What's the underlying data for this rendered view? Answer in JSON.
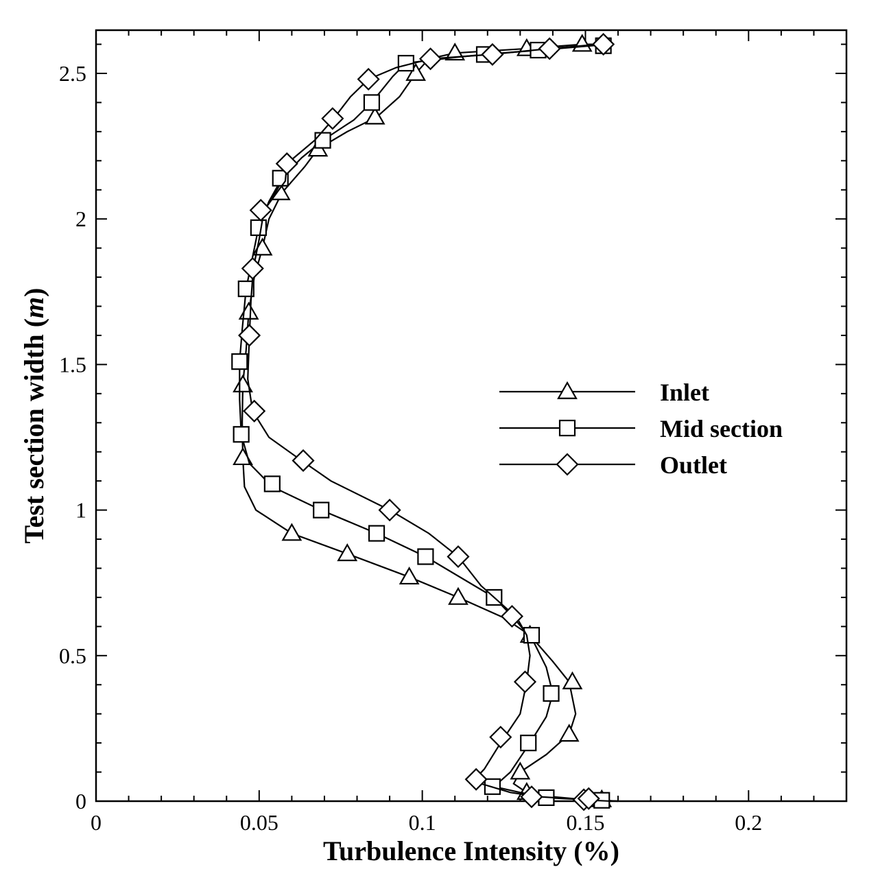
{
  "chart_data": {
    "type": "line",
    "xlabel": "Turbulence Intensity (%)",
    "ylabel_text": "Test section width (",
    "ylabel_unit": "m",
    "ylabel_close": ")",
    "xlim": [
      0,
      0.23
    ],
    "ylim": [
      0,
      2.65
    ],
    "x_ticks": [
      0,
      0.05,
      0.1,
      0.15,
      0.2
    ],
    "x_tick_labels": [
      "0",
      "0.05",
      "0.1",
      "0.15",
      "0.2"
    ],
    "y_ticks": [
      0,
      0.5,
      1,
      1.5,
      2,
      2.5
    ],
    "y_tick_labels": [
      "0",
      "0.5",
      "1",
      "1.5",
      "2",
      "2.5"
    ],
    "grid": false,
    "legend_position": "center-right",
    "series": [
      {
        "name": "Inlet",
        "marker": "triangle",
        "curve": [
          [
            0.16,
            0
          ],
          [
            0.15,
            0.005
          ],
          [
            0.14,
            0.015
          ],
          [
            0.132,
            0.03
          ],
          [
            0.128,
            0.06
          ],
          [
            0.13,
            0.1
          ],
          [
            0.138,
            0.16
          ],
          [
            0.145,
            0.23
          ],
          [
            0.147,
            0.3
          ],
          [
            0.145,
            0.41
          ],
          [
            0.14,
            0.48
          ],
          [
            0.133,
            0.57
          ],
          [
            0.125,
            0.63
          ],
          [
            0.111,
            0.7
          ],
          [
            0.096,
            0.77
          ],
          [
            0.077,
            0.85
          ],
          [
            0.06,
            0.92
          ],
          [
            0.049,
            1.0
          ],
          [
            0.0455,
            1.08
          ],
          [
            0.045,
            1.18
          ],
          [
            0.0448,
            1.3
          ],
          [
            0.045,
            1.43
          ],
          [
            0.046,
            1.55
          ],
          [
            0.0468,
            1.68
          ],
          [
            0.0485,
            1.8
          ],
          [
            0.051,
            1.9
          ],
          [
            0.053,
            2.0
          ],
          [
            0.057,
            2.09
          ],
          [
            0.064,
            2.18
          ],
          [
            0.068,
            2.24
          ],
          [
            0.077,
            2.3
          ],
          [
            0.086,
            2.35
          ],
          [
            0.093,
            2.42
          ],
          [
            0.098,
            2.5
          ],
          [
            0.102,
            2.55
          ],
          [
            0.11,
            2.57
          ],
          [
            0.132,
            2.585
          ],
          [
            0.149,
            2.6
          ],
          [
            0.156,
            2.6
          ]
        ],
        "markers": [
          [
            0.155,
            0.005
          ],
          [
            0.132,
            0.03
          ],
          [
            0.13,
            0.1
          ],
          [
            0.145,
            0.23
          ],
          [
            0.146,
            0.41
          ],
          [
            0.133,
            0.57
          ],
          [
            0.111,
            0.7
          ],
          [
            0.096,
            0.77
          ],
          [
            0.077,
            0.85
          ],
          [
            0.06,
            0.92
          ],
          [
            0.045,
            1.18
          ],
          [
            0.045,
            1.43
          ],
          [
            0.0468,
            1.68
          ],
          [
            0.051,
            1.9
          ],
          [
            0.0565,
            2.09
          ],
          [
            0.068,
            2.24
          ],
          [
            0.0855,
            2.35
          ],
          [
            0.098,
            2.5
          ],
          [
            0.11,
            2.57
          ],
          [
            0.132,
            2.585
          ],
          [
            0.149,
            2.6
          ]
        ]
      },
      {
        "name": "Mid section",
        "marker": "square",
        "curve": [
          [
            0.16,
            0
          ],
          [
            0.155,
            0.003
          ],
          [
            0.145,
            0.008
          ],
          [
            0.138,
            0.012
          ],
          [
            0.13,
            0.03
          ],
          [
            0.122,
            0.05
          ],
          [
            0.127,
            0.1
          ],
          [
            0.133,
            0.2
          ],
          [
            0.138,
            0.29
          ],
          [
            0.14,
            0.37
          ],
          [
            0.138,
            0.46
          ],
          [
            0.134,
            0.55
          ],
          [
            0.128,
            0.63
          ],
          [
            0.122,
            0.7
          ],
          [
            0.101,
            0.84
          ],
          [
            0.086,
            0.92
          ],
          [
            0.069,
            1.0
          ],
          [
            0.054,
            1.08
          ],
          [
            0.047,
            1.16
          ],
          [
            0.0445,
            1.26
          ],
          [
            0.044,
            1.38
          ],
          [
            0.044,
            1.51
          ],
          [
            0.0448,
            1.62
          ],
          [
            0.046,
            1.76
          ],
          [
            0.048,
            1.87
          ],
          [
            0.0498,
            1.97
          ],
          [
            0.053,
            2.06
          ],
          [
            0.057,
            2.14
          ],
          [
            0.063,
            2.21
          ],
          [
            0.0695,
            2.27
          ],
          [
            0.079,
            2.34
          ],
          [
            0.0845,
            2.4
          ],
          [
            0.091,
            2.49
          ],
          [
            0.095,
            2.535
          ],
          [
            0.11,
            2.555
          ],
          [
            0.119,
            2.565
          ],
          [
            0.136,
            2.58
          ],
          [
            0.152,
            2.595
          ],
          [
            0.156,
            2.6
          ]
        ],
        "markers": [
          [
            0.155,
            0.003
          ],
          [
            0.138,
            0.012
          ],
          [
            0.1215,
            0.05
          ],
          [
            0.1325,
            0.2
          ],
          [
            0.1395,
            0.37
          ],
          [
            0.1335,
            0.57
          ],
          [
            0.122,
            0.7
          ],
          [
            0.101,
            0.84
          ],
          [
            0.086,
            0.92
          ],
          [
            0.069,
            1.0
          ],
          [
            0.054,
            1.09
          ],
          [
            0.0445,
            1.26
          ],
          [
            0.044,
            1.51
          ],
          [
            0.046,
            1.76
          ],
          [
            0.0498,
            1.97
          ],
          [
            0.0565,
            2.14
          ],
          [
            0.0695,
            2.27
          ],
          [
            0.0845,
            2.4
          ],
          [
            0.095,
            2.535
          ],
          [
            0.119,
            2.565
          ],
          [
            0.1355,
            2.58
          ],
          [
            0.1555,
            2.595
          ]
        ]
      },
      {
        "name": "Outlet",
        "marker": "diamond",
        "curve": [
          [
            0.158,
            0
          ],
          [
            0.15,
            0.004
          ],
          [
            0.145,
            0.009
          ],
          [
            0.136,
            0.015
          ],
          [
            0.127,
            0.03
          ],
          [
            0.118,
            0.06
          ],
          [
            0.116,
            0.075
          ],
          [
            0.119,
            0.11
          ],
          [
            0.124,
            0.2
          ],
          [
            0.13,
            0.3
          ],
          [
            0.132,
            0.41
          ],
          [
            0.133,
            0.5
          ],
          [
            0.132,
            0.57
          ],
          [
            0.129,
            0.63
          ],
          [
            0.118,
            0.74
          ],
          [
            0.111,
            0.84
          ],
          [
            0.102,
            0.92
          ],
          [
            0.09,
            1.0
          ],
          [
            0.072,
            1.1
          ],
          [
            0.063,
            1.17
          ],
          [
            0.053,
            1.25
          ],
          [
            0.048,
            1.34
          ],
          [
            0.0465,
            1.45
          ],
          [
            0.047,
            1.6
          ],
          [
            0.0475,
            1.72
          ],
          [
            0.0482,
            1.83
          ],
          [
            0.05,
            1.93
          ],
          [
            0.0515,
            2.03
          ],
          [
            0.058,
            2.13
          ],
          [
            0.0585,
            2.19
          ],
          [
            0.067,
            2.27
          ],
          [
            0.0725,
            2.34
          ],
          [
            0.078,
            2.42
          ],
          [
            0.0835,
            2.48
          ],
          [
            0.092,
            2.52
          ],
          [
            0.1025,
            2.55
          ],
          [
            0.121,
            2.565
          ],
          [
            0.139,
            2.585
          ],
          [
            0.154,
            2.6
          ],
          [
            0.157,
            2.6
          ]
        ],
        "markers": [
          [
            0.1495,
            0.005
          ],
          [
            0.151,
            0.009
          ],
          [
            0.1335,
            0.015
          ],
          [
            0.1165,
            0.075
          ],
          [
            0.124,
            0.22
          ],
          [
            0.1315,
            0.41
          ],
          [
            0.1275,
            0.635
          ],
          [
            0.111,
            0.84
          ],
          [
            0.09,
            1.0
          ],
          [
            0.0635,
            1.17
          ],
          [
            0.0485,
            1.34
          ],
          [
            0.047,
            1.6
          ],
          [
            0.048,
            1.83
          ],
          [
            0.0505,
            2.03
          ],
          [
            0.0585,
            2.19
          ],
          [
            0.0725,
            2.345
          ],
          [
            0.0835,
            2.48
          ],
          [
            0.1025,
            2.55
          ],
          [
            0.1215,
            2.565
          ],
          [
            0.139,
            2.585
          ],
          [
            0.1555,
            2.6
          ]
        ]
      }
    ]
  }
}
